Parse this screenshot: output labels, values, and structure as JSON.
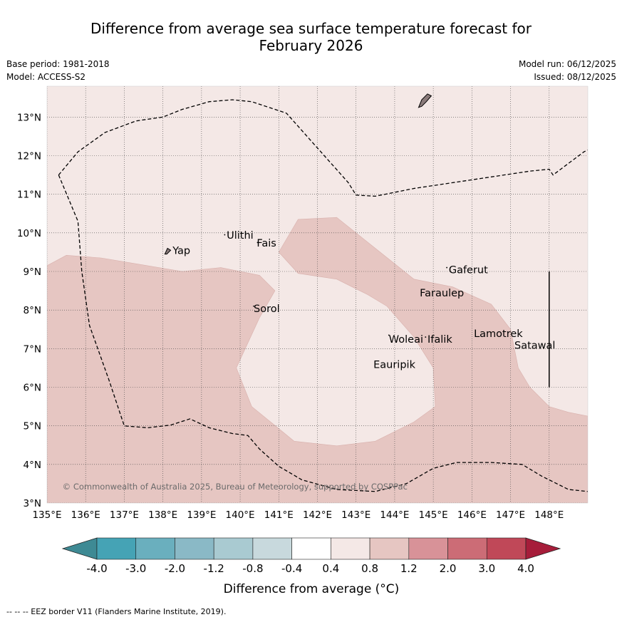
{
  "title": {
    "line1": "Difference from average sea surface temperature forecast for",
    "line2": "February 2026"
  },
  "meta": {
    "base_period": "Base period: 1981-2018",
    "model": "Model: ACCESS-S2",
    "model_run": "Model run: 06/12/2025",
    "issued": "Issued: 08/12/2025"
  },
  "copyright": "© Commonwealth of Australia 2025, Bureau of Meteorology, supported by COSPPac",
  "map_data": {
    "lon_range": [
      135,
      149
    ],
    "lat_range": [
      3,
      13.8
    ],
    "lon_ticks": [
      {
        "value": 135,
        "label": "135°E"
      },
      {
        "value": 136,
        "label": "136°E"
      },
      {
        "value": 137,
        "label": "137°E"
      },
      {
        "value": 138,
        "label": "138°E"
      },
      {
        "value": 139,
        "label": "139°E"
      },
      {
        "value": 140,
        "label": "140°E"
      },
      {
        "value": 141,
        "label": "141°E"
      },
      {
        "value": 142,
        "label": "142°E"
      },
      {
        "value": 143,
        "label": "143°E"
      },
      {
        "value": 144,
        "label": "144°E"
      },
      {
        "value": 145,
        "label": "145°E"
      },
      {
        "value": 146,
        "label": "146°E"
      },
      {
        "value": 147,
        "label": "147°E"
      },
      {
        "value": 148,
        "label": "148°E"
      }
    ],
    "lat_ticks": [
      {
        "value": 3,
        "label": "3°N"
      },
      {
        "value": 4,
        "label": "4°N"
      },
      {
        "value": 5,
        "label": "5°N"
      },
      {
        "value": 6,
        "label": "6°N"
      },
      {
        "value": 7,
        "label": "7°N"
      },
      {
        "value": 8,
        "label": "8°N"
      },
      {
        "value": 9,
        "label": "9°N"
      },
      {
        "value": 10,
        "label": "10°N"
      },
      {
        "value": 11,
        "label": "11°N"
      },
      {
        "value": 12,
        "label": "12°N"
      },
      {
        "value": 13,
        "label": "13°N"
      }
    ],
    "background_anomaly_range": "0.4 to 0.8",
    "regions": [
      {
        "name": "anomaly-0.8-1.2-west",
        "range": "0.8 to 1.2",
        "color": "#e6c6c2",
        "coords": [
          [
            135,
            9.15
          ],
          [
            135.5,
            9.42
          ],
          [
            136.4,
            9.35
          ],
          [
            137.3,
            9.2
          ],
          [
            138.5,
            9.0
          ],
          [
            139.5,
            9.1
          ],
          [
            140.5,
            8.9
          ],
          [
            140.9,
            8.5
          ],
          [
            140.5,
            7.8
          ],
          [
            139.9,
            6.5
          ],
          [
            140.3,
            5.5
          ],
          [
            141.4,
            4.6
          ],
          [
            142.5,
            4.48
          ],
          [
            143.5,
            4.6
          ],
          [
            144.5,
            5.1
          ],
          [
            145.05,
            5.5
          ],
          [
            145.0,
            6.5
          ],
          [
            144.5,
            7.3
          ],
          [
            143.8,
            8.1
          ],
          [
            143.3,
            8.4
          ],
          [
            142.5,
            8.8
          ],
          [
            141.5,
            8.95
          ],
          [
            141.0,
            9.5
          ],
          [
            141.5,
            10.35
          ],
          [
            142.5,
            10.4
          ],
          [
            143.5,
            9.6
          ],
          [
            144.5,
            8.8
          ],
          [
            145.5,
            8.6
          ],
          [
            146.5,
            8.15
          ],
          [
            147.0,
            7.5
          ],
          [
            147.2,
            6.5
          ],
          [
            147.5,
            6.0
          ],
          [
            148.0,
            5.5
          ],
          [
            148.5,
            5.35
          ],
          [
            149,
            5.25
          ],
          [
            149,
            3
          ],
          [
            135,
            3
          ]
        ]
      }
    ],
    "eez_lines": [
      {
        "name": "eez-north",
        "coords": [
          [
            135.3,
            11.5
          ],
          [
            135.8,
            12.1
          ],
          [
            136.5,
            12.6
          ],
          [
            137.3,
            12.9
          ],
          [
            138.0,
            13.0
          ],
          [
            138.5,
            13.2
          ],
          [
            139.2,
            13.4
          ],
          [
            139.8,
            13.45
          ],
          [
            140.3,
            13.4
          ],
          [
            141.2,
            13.1
          ],
          [
            142.0,
            12.2
          ],
          [
            142.8,
            11.3
          ],
          [
            143.0,
            10.98
          ],
          [
            143.5,
            10.95
          ],
          [
            144.5,
            11.15
          ],
          [
            145.5,
            11.3
          ],
          [
            146.5,
            11.45
          ],
          [
            147.5,
            11.6
          ],
          [
            148.0,
            11.65
          ],
          [
            148.1,
            11.5
          ],
          [
            148.5,
            11.8
          ],
          [
            148.9,
            12.1
          ],
          [
            149,
            12.15
          ]
        ]
      },
      {
        "name": "eez-west-south",
        "coords": [
          [
            135.3,
            11.5
          ],
          [
            135.8,
            10.3
          ],
          [
            135.9,
            9.0
          ],
          [
            136.1,
            7.6
          ],
          [
            136.6,
            6.2
          ],
          [
            137.0,
            5.0
          ],
          [
            137.6,
            4.95
          ],
          [
            138.2,
            5.02
          ],
          [
            138.7,
            5.18
          ],
          [
            139.2,
            4.95
          ],
          [
            139.8,
            4.8
          ],
          [
            140.2,
            4.75
          ],
          [
            140.5,
            4.4
          ],
          [
            141.0,
            3.95
          ],
          [
            141.6,
            3.6
          ],
          [
            142.5,
            3.35
          ],
          [
            143.5,
            3.3
          ],
          [
            144.3,
            3.5
          ],
          [
            145.0,
            3.9
          ],
          [
            145.6,
            4.05
          ],
          [
            146.5,
            4.05
          ],
          [
            147.3,
            4.0
          ],
          [
            147.8,
            3.7
          ],
          [
            148.5,
            3.35
          ],
          [
            149,
            3.3
          ]
        ]
      }
    ],
    "boundary_line": {
      "lon": 148,
      "lat_from": 6.0,
      "lat_to": 9.0
    },
    "islands": [
      {
        "name": "Guam",
        "coords": [
          [
            144.62,
            13.25
          ],
          [
            144.7,
            13.45
          ],
          [
            144.85,
            13.6
          ],
          [
            144.95,
            13.55
          ],
          [
            144.82,
            13.4
          ],
          [
            144.7,
            13.28
          ]
        ]
      },
      {
        "name": "Yap-island",
        "coords": [
          [
            138.05,
            9.45
          ],
          [
            138.12,
            9.6
          ],
          [
            138.2,
            9.55
          ],
          [
            138.1,
            9.45
          ]
        ]
      }
    ],
    "place_labels": [
      {
        "name": "Yap",
        "lon": 138.25,
        "lat": 9.45
      },
      {
        "name": "Ulithi",
        "lon": 139.65,
        "lat": 9.85
      },
      {
        "name": "Fais",
        "lon": 140.43,
        "lat": 9.65
      },
      {
        "name": "Sorol",
        "lon": 140.35,
        "lat": 7.95
      },
      {
        "name": "Gaferut",
        "lon": 145.4,
        "lat": 8.95
      },
      {
        "name": "Faraulep",
        "lon": 144.65,
        "lat": 8.35
      },
      {
        "name": "Woleai",
        "lon": 143.85,
        "lat": 7.15
      },
      {
        "name": "Ifalik",
        "lon": 144.85,
        "lat": 7.15
      },
      {
        "name": "Lamotrek",
        "lon": 146.05,
        "lat": 7.3
      },
      {
        "name": "Satawal",
        "lon": 147.1,
        "lat": 7.0
      },
      {
        "name": "Eauripik",
        "lon": 143.45,
        "lat": 6.5
      }
    ],
    "island_dots": [
      {
        "name": "ulithi-dot",
        "lon": 139.6,
        "lat": 9.95
      },
      {
        "name": "fais-dot",
        "lon": 140.45,
        "lat": 9.75
      },
      {
        "name": "sorol-dot",
        "lon": 140.35,
        "lat": 8.1
      },
      {
        "name": "gaferut-dot",
        "lon": 145.35,
        "lat": 9.1
      },
      {
        "name": "woleai-dot",
        "lon": 143.85,
        "lat": 7.35
      },
      {
        "name": "ifalik-dot",
        "lon": 144.8,
        "lat": 7.3
      }
    ]
  },
  "colorbar": {
    "label": "Difference from average (°C)",
    "ticks": [
      "-4.0",
      "-3.0",
      "-2.0",
      "-1.2",
      "-0.8",
      "-0.4",
      "0.4",
      "0.8",
      "1.2",
      "2.0",
      "3.0",
      "4.0"
    ],
    "colors": [
      "#3e8a94",
      "#45a3b5",
      "#6aafbe",
      "#8ab9c6",
      "#a9cad1",
      "#c8d9dd",
      "#ffffff",
      "#f4e8e6",
      "#e6c6c2",
      "#d89298",
      "#cc6c76",
      "#c04858",
      "#a61d3a"
    ]
  },
  "footer": "-- -- -- EEZ border V11 (Flanders Marine Institute, 2019)."
}
